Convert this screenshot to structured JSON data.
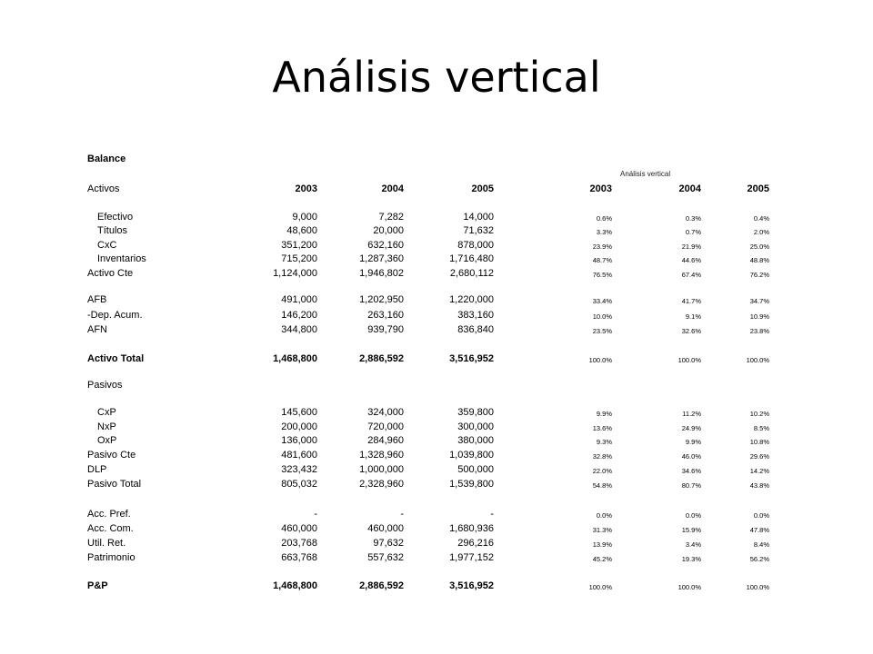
{
  "title": "Análisis vertical",
  "sheet_heading": "Balance",
  "vertical_heading": "Análisis vertical",
  "header": {
    "label": "Activos",
    "years": [
      "2003",
      "2004",
      "2005"
    ],
    "pct_years": [
      "2003",
      "2004",
      "2005"
    ]
  },
  "rows": [
    {
      "label": "Efectivo",
      "values": [
        "9,000",
        "7,282",
        "14,000"
      ],
      "pcts": [
        "0.6%",
        "0.3%",
        "0.4%"
      ]
    },
    {
      "label": "Títulos",
      "values": [
        "48,600",
        "20,000",
        "71,632"
      ],
      "pcts": [
        "3.3%",
        "0.7%",
        "2.0%"
      ]
    },
    {
      "label": "CxC",
      "values": [
        "351,200",
        "632,160",
        "878,000"
      ],
      "pcts": [
        "23.9%",
        "21.9%",
        "25.0%"
      ]
    },
    {
      "label": "Inventarios",
      "values": [
        "715,200",
        "1,287,360",
        "1,716,480"
      ],
      "pcts": [
        "48.7%",
        "44.6%",
        "48.8%"
      ]
    },
    {
      "label": "Activo Cte",
      "values": [
        "1,124,000",
        "1,946,802",
        "2,680,112"
      ],
      "pcts": [
        "76.5%",
        "67.4%",
        "76.2%"
      ]
    },
    {
      "label": "AFB",
      "values": [
        "491,000",
        "1,202,950",
        "1,220,000"
      ],
      "pcts": [
        "33.4%",
        "41.7%",
        "34.7%"
      ]
    },
    {
      "label": "-Dep. Acum.",
      "values": [
        "146,200",
        "263,160",
        "383,160"
      ],
      "pcts": [
        "10.0%",
        "9.1%",
        "10.9%"
      ]
    },
    {
      "label": "AFN",
      "values": [
        "344,800",
        "939,790",
        "836,840"
      ],
      "pcts": [
        "23.5%",
        "32.6%",
        "23.8%"
      ]
    },
    {
      "label": "Activo Total",
      "values": [
        "1,468,800",
        "2,886,592",
        "3,516,952"
      ],
      "pcts": [
        "100.0%",
        "100.0%",
        "100.0%"
      ]
    },
    {
      "label": "Pasivos",
      "values": [
        "",
        "",
        ""
      ],
      "pcts": [
        "",
        "",
        ""
      ]
    },
    {
      "label": "CxP",
      "values": [
        "145,600",
        "324,000",
        "359,800"
      ],
      "pcts": [
        "9.9%",
        "11.2%",
        "10.2%"
      ]
    },
    {
      "label": "NxP",
      "values": [
        "200,000",
        "720,000",
        "300,000"
      ],
      "pcts": [
        "13.6%",
        "24.9%",
        "8.5%"
      ]
    },
    {
      "label": "OxP",
      "values": [
        "136,000",
        "284,960",
        "380,000"
      ],
      "pcts": [
        "9.3%",
        "9.9%",
        "10.8%"
      ]
    },
    {
      "label": "Pasivo Cte",
      "values": [
        "481,600",
        "1,328,960",
        "1,039,800"
      ],
      "pcts": [
        "32.8%",
        "46.0%",
        "29.6%"
      ]
    },
    {
      "label": "DLP",
      "values": [
        "323,432",
        "1,000,000",
        "500,000"
      ],
      "pcts": [
        "22.0%",
        "34.6%",
        "14.2%"
      ]
    },
    {
      "label": "Pasivo Total",
      "values": [
        "805,032",
        "2,328,960",
        "1,539,800"
      ],
      "pcts": [
        "54.8%",
        "80.7%",
        "43.8%"
      ]
    },
    {
      "label": "Acc. Pref.",
      "values": [
        "-",
        "-",
        "-"
      ],
      "pcts": [
        "0.0%",
        "0.0%",
        "0.0%"
      ]
    },
    {
      "label": "Acc. Com.",
      "values": [
        "460,000",
        "460,000",
        "1,680,936"
      ],
      "pcts": [
        "31.3%",
        "15.9%",
        "47.8%"
      ]
    },
    {
      "label": "Util. Ret.",
      "values": [
        "203,768",
        "97,632",
        "296,216"
      ],
      "pcts": [
        "13.9%",
        "3.4%",
        "8.4%"
      ]
    },
    {
      "label": "Patrimonio",
      "values": [
        "663,768",
        "557,632",
        "1,977,152"
      ],
      "pcts": [
        "45.2%",
        "19.3%",
        "56.2%"
      ]
    },
    {
      "label": "P&P",
      "values": [
        "1,468,800",
        "2,886,592",
        "3,516,952"
      ],
      "pcts": [
        "100.0%",
        "100.0%",
        "100.0%"
      ]
    }
  ]
}
